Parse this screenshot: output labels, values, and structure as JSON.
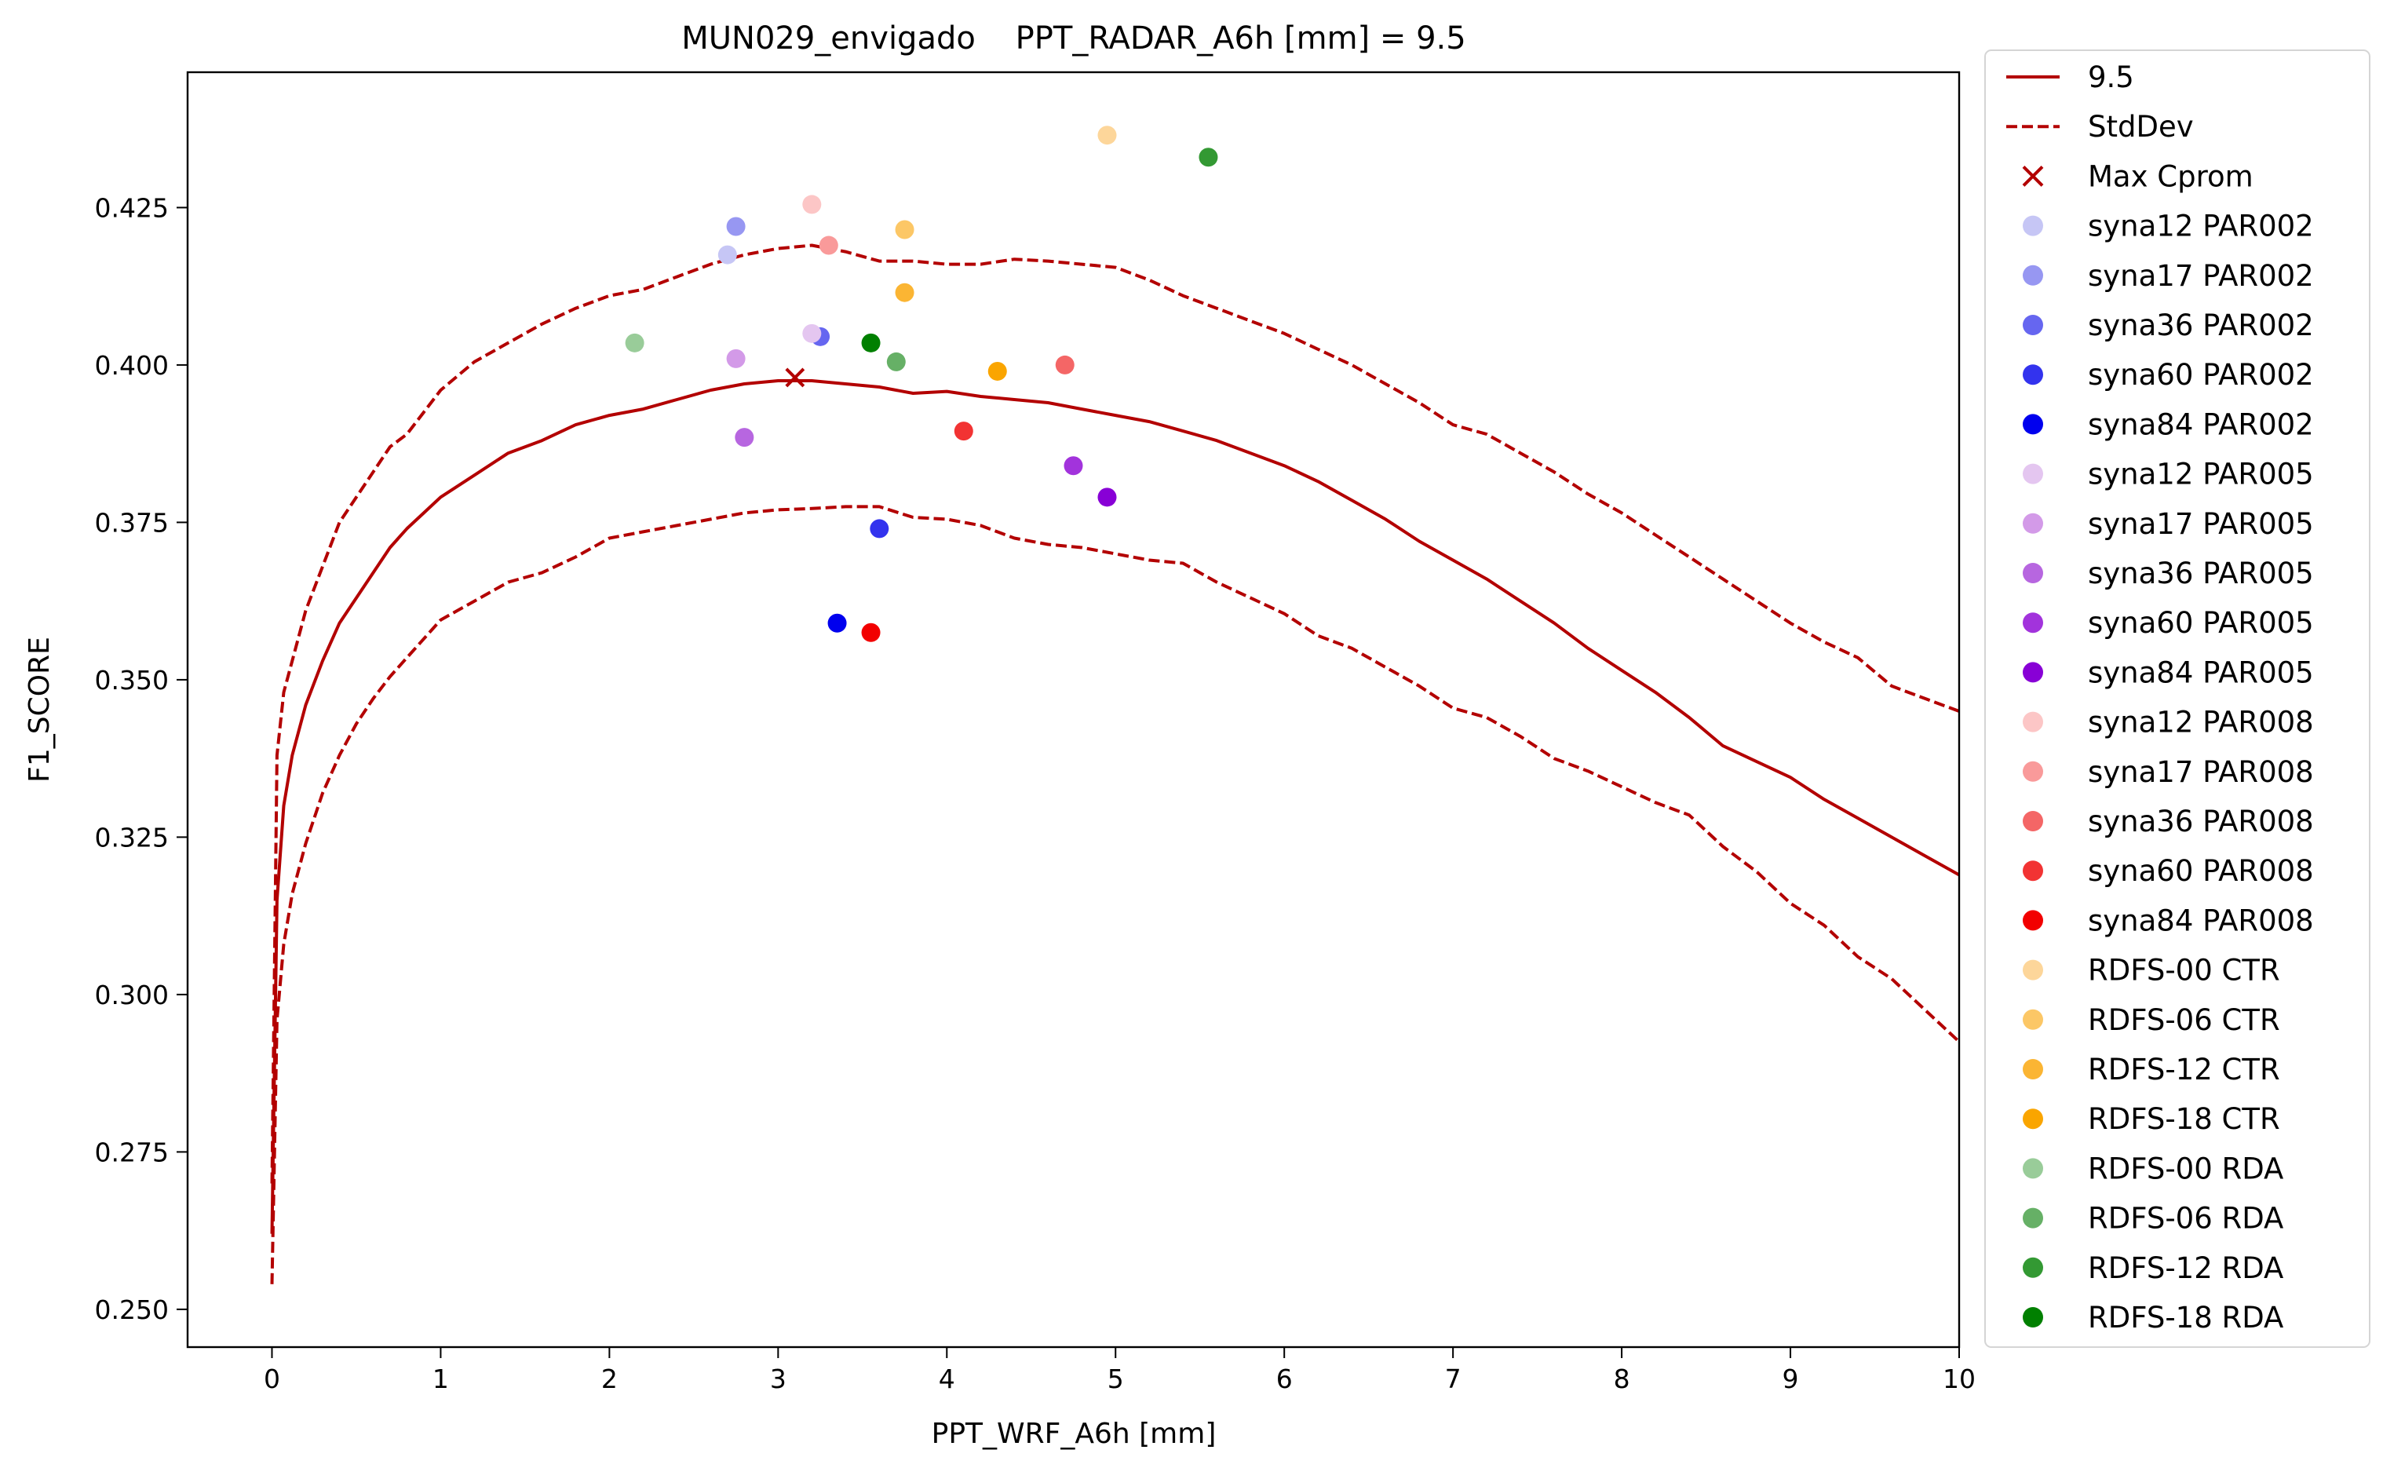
{
  "chart_data": {
    "type": "line",
    "title": "MUN029_envigado    PPT_RADAR_A6h [mm] = 9.5",
    "xlabel": "PPT_WRF_A6h [mm]",
    "ylabel": "F1_SCORE",
    "xlim": [
      -0.5,
      10
    ],
    "ylim": [
      0.244,
      0.4465
    ],
    "xticks": [
      0,
      1,
      2,
      3,
      4,
      5,
      6,
      7,
      8,
      9,
      10
    ],
    "yticks": [
      0.25,
      0.275,
      0.3,
      0.325,
      0.35,
      0.375,
      0.4,
      0.425
    ],
    "ytick_labels": [
      "0.250",
      "0.275",
      "0.300",
      "0.325",
      "0.350",
      "0.375",
      "0.400",
      "0.425"
    ],
    "grid": false,
    "legend_position": "outside-right",
    "line_color": "#b30000",
    "lines": [
      {
        "name": "9.5",
        "dash": "solid",
        "x": [
          0,
          0.03,
          0.07,
          0.12,
          0.2,
          0.3,
          0.4,
          0.5,
          0.6,
          0.7,
          0.8,
          0.9,
          1.0,
          1.2,
          1.4,
          1.6,
          1.8,
          2.0,
          2.2,
          2.4,
          2.6,
          2.8,
          3.0,
          3.2,
          3.4,
          3.6,
          3.8,
          4.0,
          4.2,
          4.4,
          4.6,
          4.8,
          5.0,
          5.2,
          5.4,
          5.6,
          5.8,
          6.0,
          6.2,
          6.4,
          6.6,
          6.8,
          7.0,
          7.2,
          7.4,
          7.6,
          7.8,
          8.0,
          8.2,
          8.4,
          8.6,
          8.8,
          9.0,
          9.2,
          9.4,
          9.6,
          9.8,
          10.0
        ],
        "y": [
          0.262,
          0.315,
          0.33,
          0.338,
          0.346,
          0.353,
          0.359,
          0.363,
          0.367,
          0.371,
          0.374,
          0.3765,
          0.379,
          0.3825,
          0.386,
          0.388,
          0.3905,
          0.392,
          0.393,
          0.3945,
          0.396,
          0.397,
          0.3975,
          0.3975,
          0.397,
          0.3965,
          0.3955,
          0.3958,
          0.395,
          0.3945,
          0.394,
          0.393,
          0.392,
          0.391,
          0.3895,
          0.388,
          0.386,
          0.384,
          0.3815,
          0.3785,
          0.3755,
          0.372,
          0.369,
          0.366,
          0.3625,
          0.359,
          0.355,
          0.3515,
          0.348,
          0.344,
          0.3395,
          0.337,
          0.3345,
          0.331,
          0.328,
          0.325,
          0.322,
          0.319
        ]
      },
      {
        "name": "StdDev",
        "dash": "dashed",
        "x": [
          0,
          0.03,
          0.07,
          0.12,
          0.2,
          0.3,
          0.4,
          0.5,
          0.6,
          0.7,
          0.8,
          0.9,
          1.0,
          1.2,
          1.4,
          1.6,
          1.8,
          2.0,
          2.2,
          2.4,
          2.6,
          2.8,
          3.0,
          3.2,
          3.4,
          3.6,
          3.8,
          4.0,
          4.2,
          4.4,
          4.6,
          4.8,
          5.0,
          5.2,
          5.4,
          5.6,
          5.8,
          6.0,
          6.2,
          6.4,
          6.6,
          6.8,
          7.0,
          7.2,
          7.4,
          7.6,
          7.8,
          8.0,
          8.2,
          8.4,
          8.6,
          8.8,
          9.0,
          9.2,
          9.4,
          9.6,
          9.8,
          10.0
        ],
        "y": [
          0.27,
          0.338,
          0.348,
          0.353,
          0.361,
          0.368,
          0.375,
          0.379,
          0.383,
          0.387,
          0.389,
          0.3925,
          0.396,
          0.4005,
          0.4035,
          0.4065,
          0.409,
          0.411,
          0.412,
          0.414,
          0.416,
          0.4175,
          0.4185,
          0.419,
          0.418,
          0.4165,
          0.4165,
          0.416,
          0.416,
          0.4168,
          0.4165,
          0.416,
          0.4155,
          0.4135,
          0.411,
          0.409,
          0.407,
          0.405,
          0.4025,
          0.4,
          0.397,
          0.394,
          0.3905,
          0.389,
          0.386,
          0.383,
          0.3795,
          0.3765,
          0.373,
          0.3695,
          0.366,
          0.3625,
          0.359,
          0.356,
          0.3535,
          0.349,
          0.347,
          0.345
        ]
      },
      {
        "name": "StdDev-lower",
        "dash": "dashed",
        "x": [
          0,
          0.03,
          0.07,
          0.12,
          0.2,
          0.3,
          0.4,
          0.5,
          0.6,
          0.7,
          0.8,
          0.9,
          1.0,
          1.2,
          1.4,
          1.6,
          1.8,
          2.0,
          2.2,
          2.4,
          2.6,
          2.8,
          3.0,
          3.2,
          3.4,
          3.6,
          3.8,
          4.0,
          4.2,
          4.4,
          4.6,
          4.8,
          5.0,
          5.2,
          5.4,
          5.6,
          5.8,
          6.0,
          6.2,
          6.4,
          6.6,
          6.8,
          7.0,
          7.2,
          7.4,
          7.6,
          7.8,
          8.0,
          8.2,
          8.4,
          8.6,
          8.8,
          9.0,
          9.2,
          9.4,
          9.6,
          9.8,
          10.0
        ],
        "y": [
          0.254,
          0.296,
          0.308,
          0.316,
          0.324,
          0.332,
          0.338,
          0.343,
          0.347,
          0.3505,
          0.3535,
          0.3565,
          0.3595,
          0.3625,
          0.3655,
          0.367,
          0.3695,
          0.3725,
          0.3735,
          0.3745,
          0.3755,
          0.3765,
          0.377,
          0.3772,
          0.3775,
          0.3775,
          0.3758,
          0.3755,
          0.3745,
          0.3725,
          0.3715,
          0.371,
          0.37,
          0.369,
          0.3685,
          0.3655,
          0.363,
          0.3605,
          0.357,
          0.355,
          0.352,
          0.349,
          0.3455,
          0.344,
          0.341,
          0.3375,
          0.3355,
          0.333,
          0.3305,
          0.3285,
          0.3235,
          0.3195,
          0.3145,
          0.311,
          0.306,
          0.3025,
          0.2975,
          0.2925
        ]
      }
    ],
    "max_cprom": {
      "name": "Max Cprom",
      "x": 3.1,
      "y": 0.398,
      "color": "#b30000"
    },
    "series": [
      {
        "name": "syna12 PAR002",
        "color": "#c6c6f5",
        "x": 2.7,
        "y": 0.4175
      },
      {
        "name": "syna17 PAR002",
        "color": "#9797f2",
        "x": 2.75,
        "y": 0.422
      },
      {
        "name": "syna36 PAR002",
        "color": "#6666f0",
        "x": 3.25,
        "y": 0.4045
      },
      {
        "name": "syna60 PAR002",
        "color": "#3333ee",
        "x": 3.6,
        "y": 0.374
      },
      {
        "name": "syna84 PAR002",
        "color": "#0000ee",
        "x": 3.35,
        "y": 0.359
      },
      {
        "name": "syna12 PAR005",
        "color": "#e4c6f0",
        "x": 3.2,
        "y": 0.405
      },
      {
        "name": "syna17 PAR005",
        "color": "#d39ae8",
        "x": 2.75,
        "y": 0.401
      },
      {
        "name": "syna36 PAR005",
        "color": "#b766e0",
        "x": 2.8,
        "y": 0.3885
      },
      {
        "name": "syna60 PAR005",
        "color": "#a233dc",
        "x": 4.75,
        "y": 0.384
      },
      {
        "name": "syna84 PAR005",
        "color": "#8800d6",
        "x": 4.95,
        "y": 0.379
      },
      {
        "name": "syna12 PAR008",
        "color": "#fcc6c6",
        "x": 3.2,
        "y": 0.4255
      },
      {
        "name": "syna17 PAR008",
        "color": "#f99a9a",
        "x": 3.3,
        "y": 0.419
      },
      {
        "name": "syna36 PAR008",
        "color": "#f46666",
        "x": 4.7,
        "y": 0.4
      },
      {
        "name": "syna60 PAR008",
        "color": "#f23333",
        "x": 4.1,
        "y": 0.3895
      },
      {
        "name": "syna84 PAR008",
        "color": "#f20000",
        "x": 3.55,
        "y": 0.3575
      },
      {
        "name": "RDFS-00 CTR",
        "color": "#fdd69a",
        "x": 4.95,
        "y": 0.4365
      },
      {
        "name": "RDFS-06 CTR",
        "color": "#fcc766",
        "x": 3.75,
        "y": 0.4215
      },
      {
        "name": "RDFS-12 CTR",
        "color": "#fbb533",
        "x": 3.75,
        "y": 0.4115
      },
      {
        "name": "RDFS-18 CTR",
        "color": "#faa500",
        "x": 4.3,
        "y": 0.399
      },
      {
        "name": "RDFS-00 RDA",
        "color": "#99cc99",
        "x": 2.15,
        "y": 0.4035
      },
      {
        "name": "RDFS-06 RDA",
        "color": "#66b066",
        "x": 3.7,
        "y": 0.4005
      },
      {
        "name": "RDFS-12 RDA",
        "color": "#339933",
        "x": 5.55,
        "y": 0.433
      },
      {
        "name": "RDFS-18 RDA",
        "color": "#008000",
        "x": 3.55,
        "y": 0.4035
      }
    ]
  }
}
